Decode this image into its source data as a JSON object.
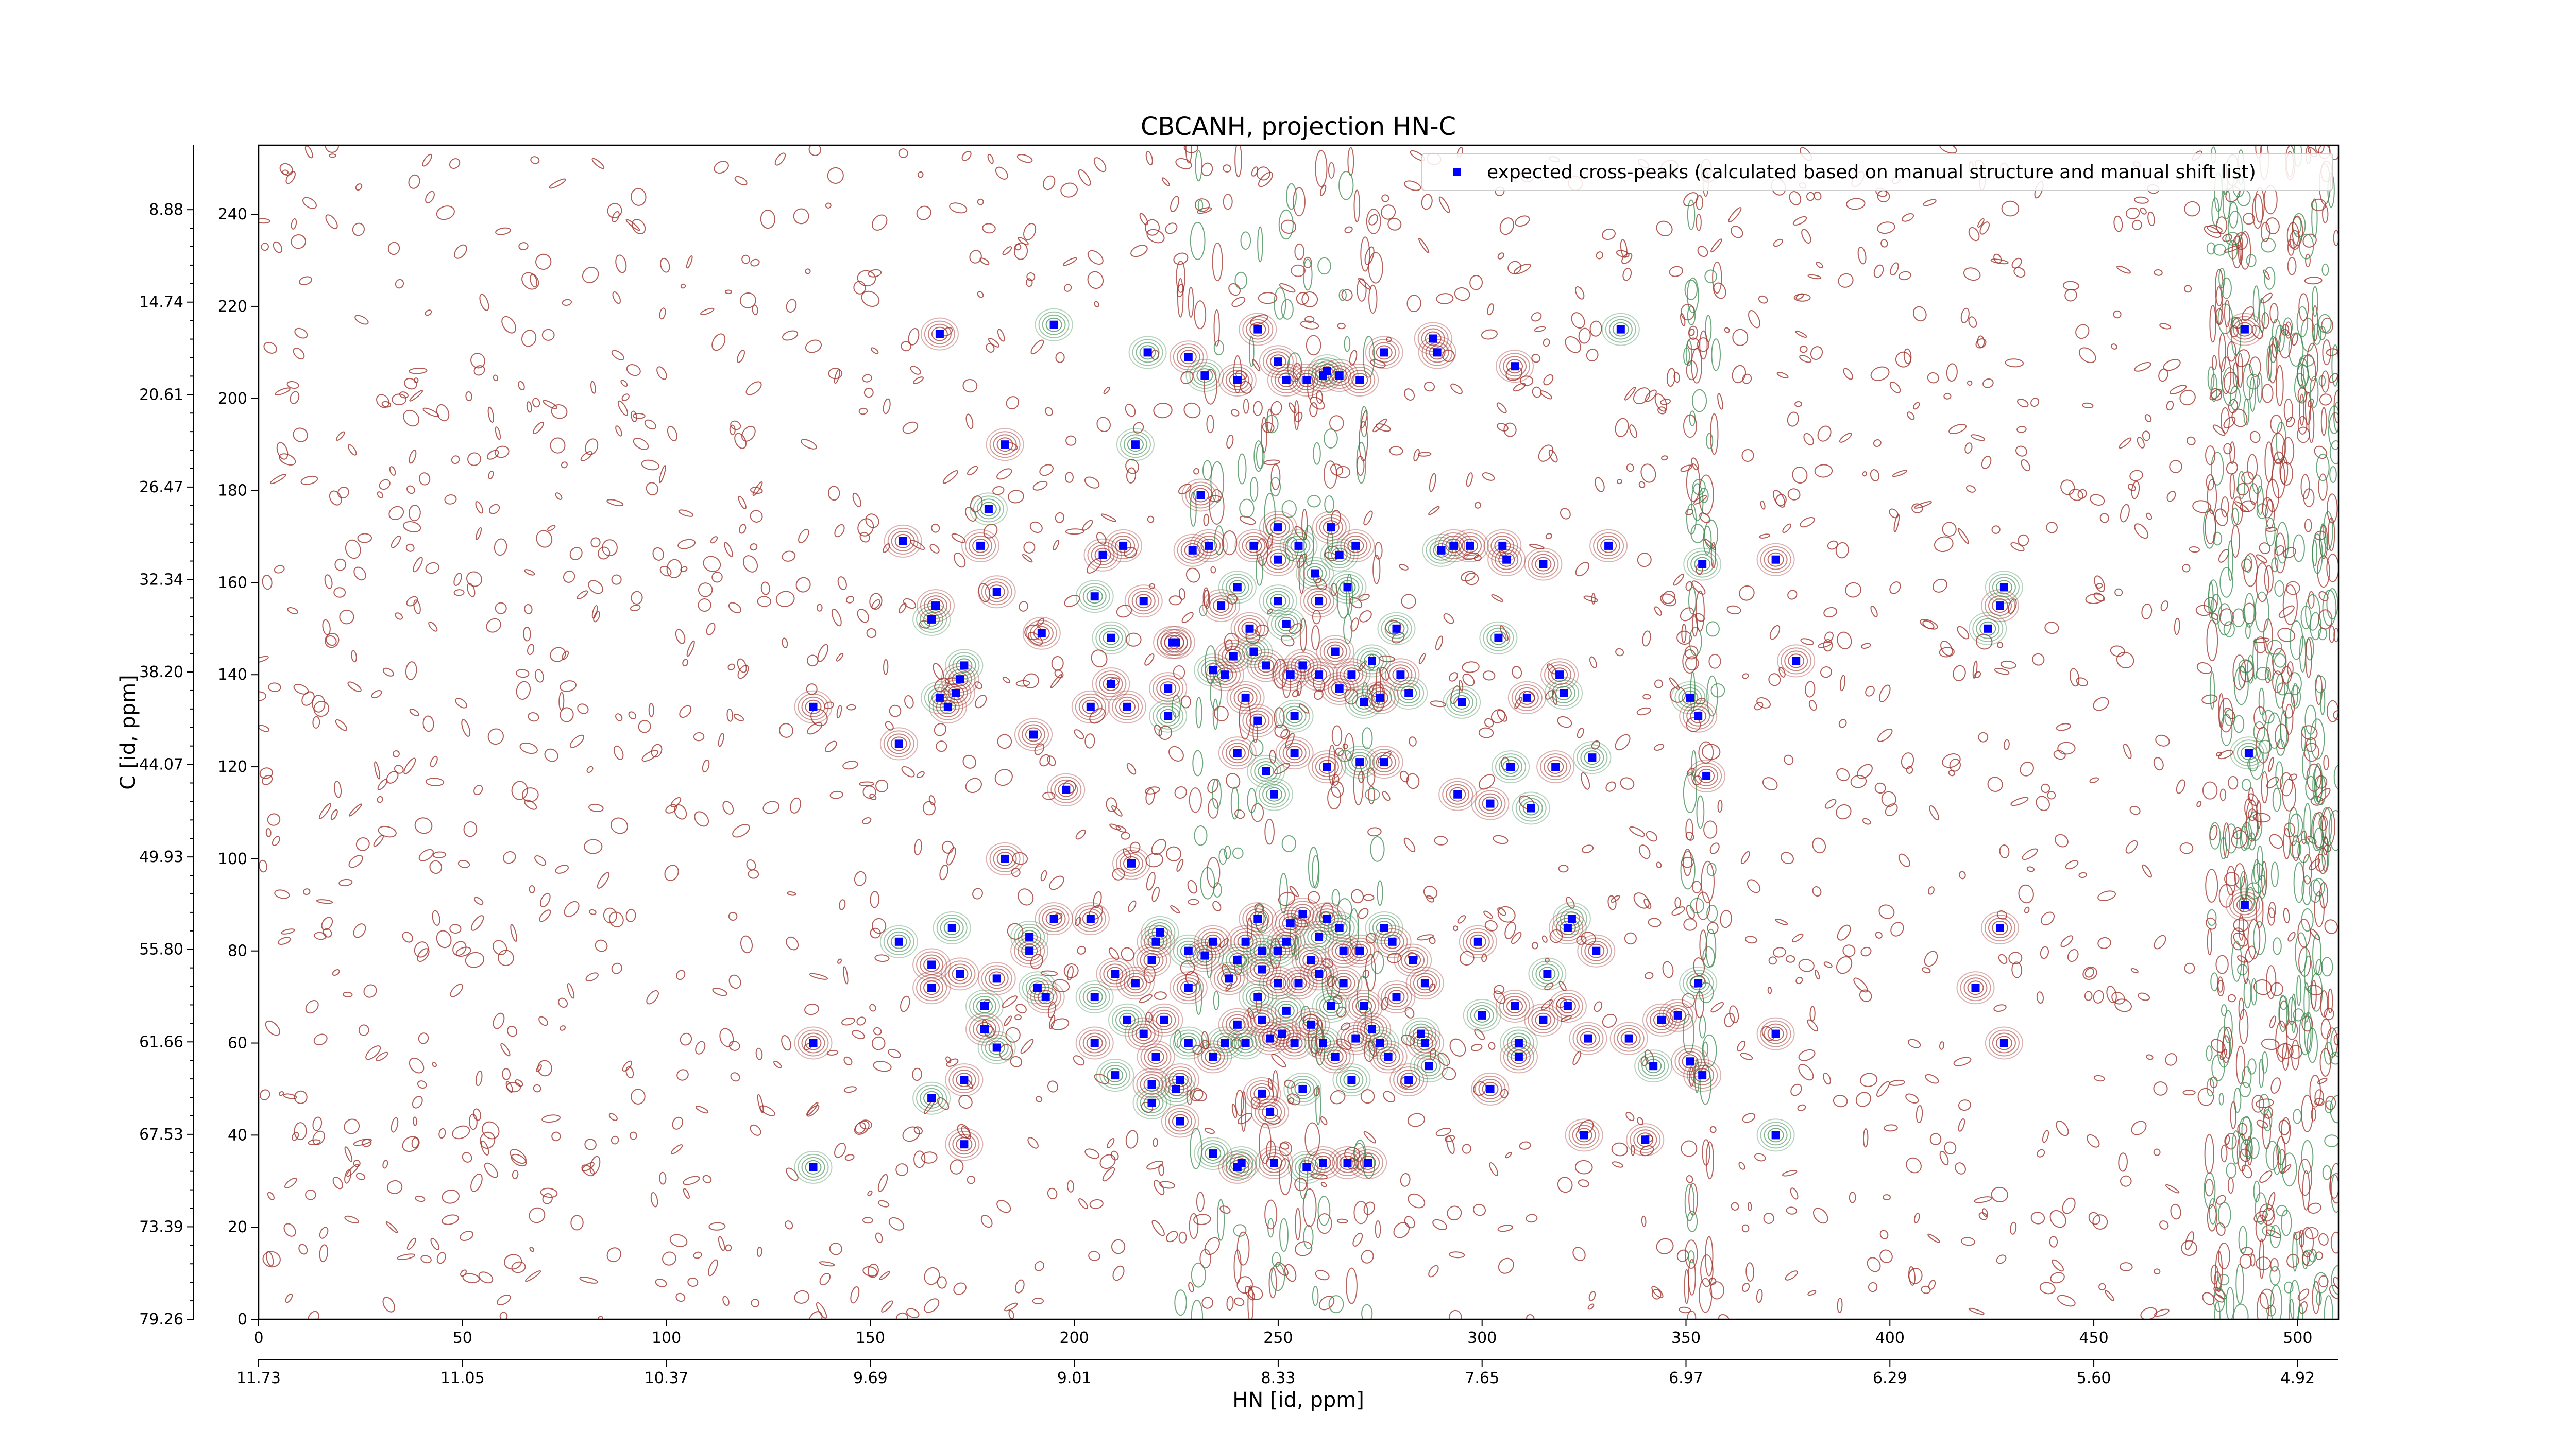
{
  "chart_data": {
    "type": "scatter",
    "title": "CBCANH, projection HN-C",
    "xlabel": "HN [id, ppm]",
    "ylabel": "C [id, ppm]",
    "xlim": [
      0,
      510
    ],
    "ylim": [
      0,
      255
    ],
    "x_ticks": [
      0,
      50,
      100,
      150,
      200,
      250,
      300,
      350,
      400,
      450,
      500
    ],
    "y_ticks": [
      0,
      20,
      40,
      60,
      80,
      100,
      120,
      140,
      160,
      180,
      200,
      220,
      240
    ],
    "x_ppm_ticks": [
      "11.73",
      "11.05",
      "10.37",
      "9.69",
      "9.01",
      "8.33",
      "7.65",
      "6.97",
      "6.29",
      "5.60",
      "4.92"
    ],
    "y_ppm_ticks": [
      "79.26",
      "73.39",
      "67.53",
      "61.66",
      "55.80",
      "49.93",
      "44.07",
      "38.20",
      "32.34",
      "26.47",
      "20.61",
      "14.74",
      "8.88"
    ],
    "legend": {
      "position": "top-right",
      "label": "expected cross-peaks (calculated based on manual structure and manual shift list)"
    },
    "colors": {
      "marker": "#0000ff",
      "contour_positive": "#a0322a",
      "contour_negative": "#3c8a50"
    },
    "series": [
      {
        "name": "expected cross-peaks (calculated based on manual structure and manual shift list)",
        "points": [
          [
            136,
            33
          ],
          [
            136,
            60
          ],
          [
            136,
            133
          ],
          [
            157,
            82
          ],
          [
            157,
            125
          ],
          [
            158,
            169
          ],
          [
            165,
            152
          ],
          [
            165,
            77
          ],
          [
            165,
            72
          ],
          [
            165,
            48
          ],
          [
            167,
            214
          ],
          [
            166,
            155
          ],
          [
            167,
            135
          ],
          [
            169,
            133
          ],
          [
            172,
            75
          ],
          [
            170,
            85
          ],
          [
            171,
            136
          ],
          [
            172,
            139
          ],
          [
            173,
            142
          ],
          [
            173,
            52
          ],
          [
            173,
            38
          ],
          [
            178,
            68
          ],
          [
            177,
            168
          ],
          [
            178,
            63
          ],
          [
            179,
            176
          ],
          [
            181,
            158
          ],
          [
            181,
            74
          ],
          [
            181,
            59
          ],
          [
            183,
            100
          ],
          [
            183,
            190
          ],
          [
            189,
            83
          ],
          [
            189,
            80
          ],
          [
            190,
            127
          ],
          [
            191,
            72
          ],
          [
            192,
            149
          ],
          [
            193,
            70
          ],
          [
            195,
            216
          ],
          [
            195,
            87
          ],
          [
            198,
            115
          ],
          [
            205,
            157
          ],
          [
            204,
            133
          ],
          [
            204,
            87
          ],
          [
            205,
            70
          ],
          [
            205,
            60
          ],
          [
            207,
            166
          ],
          [
            209,
            148
          ],
          [
            209,
            138
          ],
          [
            210,
            75
          ],
          [
            210,
            53
          ],
          [
            212,
            168
          ],
          [
            213,
            133
          ],
          [
            213,
            65
          ],
          [
            214,
            99
          ],
          [
            215,
            73
          ],
          [
            215,
            190
          ],
          [
            217,
            156
          ],
          [
            217,
            62
          ],
          [
            218,
            210
          ],
          [
            219,
            78
          ],
          [
            219,
            51
          ],
          [
            219,
            47
          ],
          [
            220,
            82
          ],
          [
            220,
            57
          ],
          [
            221,
            84
          ],
          [
            222,
            65
          ],
          [
            223,
            137
          ],
          [
            223,
            131
          ],
          [
            224,
            147
          ],
          [
            225,
            147
          ],
          [
            225,
            50
          ],
          [
            226,
            52
          ],
          [
            226,
            43
          ],
          [
            228,
            60
          ],
          [
            229,
            167
          ],
          [
            228,
            209
          ],
          [
            228,
            80
          ],
          [
            228,
            72
          ],
          [
            231,
            179
          ],
          [
            232,
            205
          ],
          [
            232,
            79
          ],
          [
            233,
            168
          ],
          [
            234,
            141
          ],
          [
            234,
            82
          ],
          [
            234,
            57
          ],
          [
            234,
            36
          ],
          [
            236,
            155
          ],
          [
            237,
            140
          ],
          [
            237,
            60
          ],
          [
            238,
            74
          ],
          [
            239,
            144
          ],
          [
            240,
            159
          ],
          [
            240,
            123
          ],
          [
            240,
            204
          ],
          [
            240,
            78
          ],
          [
            240,
            64
          ],
          [
            240,
            33
          ],
          [
            241,
            34
          ],
          [
            242,
            135
          ],
          [
            242,
            82
          ],
          [
            242,
            60
          ],
          [
            243,
            150
          ],
          [
            244,
            168
          ],
          [
            244,
            145
          ],
          [
            245,
            130
          ],
          [
            245,
            87
          ],
          [
            245,
            70
          ],
          [
            246,
            65
          ],
          [
            246,
            49
          ],
          [
            246,
            80
          ],
          [
            246,
            76
          ],
          [
            247,
            142
          ],
          [
            247,
            119
          ],
          [
            248,
            61
          ],
          [
            248,
            45
          ],
          [
            249,
            114
          ],
          [
            249,
            34
          ],
          [
            250,
            172
          ],
          [
            250,
            156
          ],
          [
            250,
            165
          ],
          [
            250,
            208
          ],
          [
            250,
            80
          ],
          [
            250,
            73
          ],
          [
            251,
            62
          ],
          [
            252,
            151
          ],
          [
            252,
            204
          ],
          [
            252,
            82
          ],
          [
            252,
            67
          ],
          [
            253,
            140
          ],
          [
            253,
            86
          ],
          [
            254,
            131
          ],
          [
            254,
            123
          ],
          [
            254,
            60
          ],
          [
            255,
            168
          ],
          [
            255,
            73
          ],
          [
            256,
            88
          ],
          [
            256,
            50
          ],
          [
            256,
            142
          ],
          [
            257,
            204
          ],
          [
            257,
            33
          ],
          [
            258,
            78
          ],
          [
            258,
            64
          ],
          [
            259,
            162
          ],
          [
            260,
            156
          ],
          [
            260,
            140
          ],
          [
            260,
            83
          ],
          [
            260,
            75
          ],
          [
            261,
            205
          ],
          [
            261,
            60
          ],
          [
            261,
            34
          ],
          [
            262,
            120
          ],
          [
            262,
            206
          ],
          [
            262,
            87
          ],
          [
            263,
            172
          ],
          [
            263,
            68
          ],
          [
            264,
            145
          ],
          [
            264,
            57
          ],
          [
            265,
            166
          ],
          [
            265,
            137
          ],
          [
            265,
            205
          ],
          [
            265,
            85
          ],
          [
            266,
            80
          ],
          [
            266,
            73
          ],
          [
            267,
            159
          ],
          [
            267,
            34
          ],
          [
            268,
            140
          ],
          [
            268,
            52
          ],
          [
            269,
            168
          ],
          [
            269,
            61
          ],
          [
            270,
            121
          ],
          [
            270,
            204
          ],
          [
            270,
            80
          ],
          [
            271,
            134
          ],
          [
            271,
            68
          ],
          [
            272,
            34
          ],
          [
            273,
            143
          ],
          [
            273,
            63
          ],
          [
            275,
            135
          ],
          [
            275,
            60
          ],
          [
            276,
            210
          ],
          [
            276,
            121
          ],
          [
            276,
            85
          ],
          [
            277,
            57
          ],
          [
            278,
            82
          ],
          [
            279,
            150
          ],
          [
            279,
            70
          ],
          [
            280,
            140
          ],
          [
            282,
            136
          ],
          [
            282,
            52
          ],
          [
            283,
            78
          ],
          [
            285,
            62
          ],
          [
            286,
            73
          ],
          [
            286,
            60
          ],
          [
            287,
            55
          ],
          [
            288,
            213
          ],
          [
            289,
            210
          ],
          [
            290,
            167
          ],
          [
            293,
            168
          ],
          [
            294,
            114
          ],
          [
            295,
            134
          ],
          [
            297,
            168
          ],
          [
            299,
            82
          ],
          [
            300,
            66
          ],
          [
            302,
            50
          ],
          [
            302,
            112
          ],
          [
            304,
            148
          ],
          [
            305,
            168
          ],
          [
            306,
            165
          ],
          [
            307,
            120
          ],
          [
            308,
            207
          ],
          [
            308,
            68
          ],
          [
            309,
            60
          ],
          [
            309,
            57
          ],
          [
            311,
            135
          ],
          [
            312,
            111
          ],
          [
            315,
            65
          ],
          [
            315,
            164
          ],
          [
            316,
            75
          ],
          [
            318,
            120
          ],
          [
            319,
            140
          ],
          [
            320,
            136
          ],
          [
            321,
            68
          ],
          [
            321,
            85
          ],
          [
            322,
            87
          ],
          [
            325,
            40
          ],
          [
            326,
            61
          ],
          [
            327,
            122
          ],
          [
            328,
            80
          ],
          [
            331,
            168
          ],
          [
            334,
            215
          ],
          [
            336,
            61
          ],
          [
            340,
            39
          ],
          [
            342,
            55
          ],
          [
            344,
            65
          ],
          [
            348,
            66
          ],
          [
            351,
            135
          ],
          [
            351,
            56
          ],
          [
            353,
            131
          ],
          [
            353,
            73
          ],
          [
            354,
            53
          ],
          [
            355,
            118
          ],
          [
            354,
            164
          ],
          [
            372,
            165
          ],
          [
            372,
            62
          ],
          [
            372,
            40
          ],
          [
            377,
            143
          ],
          [
            421,
            72
          ],
          [
            424,
            150
          ],
          [
            427,
            155
          ],
          [
            427,
            85
          ],
          [
            428,
            159
          ],
          [
            428,
            60
          ],
          [
            487,
            215
          ],
          [
            488,
            123
          ],
          [
            487,
            90
          ],
          [
            245,
            215
          ]
        ]
      }
    ]
  }
}
